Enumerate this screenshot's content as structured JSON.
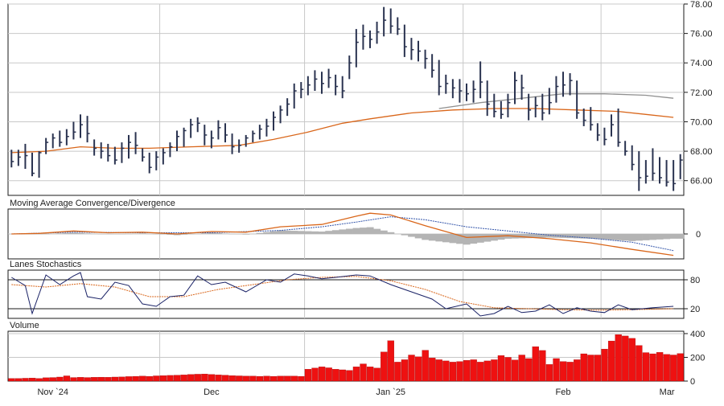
{
  "chart_data": {
    "type": "line",
    "price_axis": {
      "ylim": [
        65,
        78
      ],
      "ticks": [
        66,
        68,
        70,
        72,
        74,
        76,
        78
      ],
      "tick_labels": [
        "66.00",
        "68.00",
        "70.00",
        "72.00",
        "74.00",
        "76.00",
        "78.00"
      ]
    },
    "x_axis": {
      "month_labels": [
        "Nov `24",
        "Dec",
        "Jan `25",
        "Feb",
        "Mar"
      ],
      "month_start_index": [
        0,
        22,
        43,
        66,
        86
      ]
    },
    "price_bars": [
      {
        "h": 68.1,
        "l": 66.9,
        "c": 67.3
      },
      {
        "h": 68.1,
        "l": 67.0,
        "c": 67.6
      },
      {
        "h": 68.5,
        "l": 66.8,
        "c": 67.7
      },
      {
        "h": 67.9,
        "l": 66.3,
        "c": 66.5
      },
      {
        "h": 68.0,
        "l": 66.2,
        "c": 67.9
      },
      {
        "h": 68.9,
        "l": 67.8,
        "c": 68.6
      },
      {
        "h": 69.2,
        "l": 68.2,
        "c": 68.9
      },
      {
        "h": 69.4,
        "l": 68.3,
        "c": 68.6
      },
      {
        "h": 69.5,
        "l": 68.4,
        "c": 69.0
      },
      {
        "h": 70.0,
        "l": 68.8,
        "c": 69.3
      },
      {
        "h": 70.5,
        "l": 68.9,
        "c": 69.8
      },
      {
        "h": 70.4,
        "l": 68.6,
        "c": 69.2
      },
      {
        "h": 68.8,
        "l": 67.7,
        "c": 68.2
      },
      {
        "h": 68.6,
        "l": 67.5,
        "c": 68.0
      },
      {
        "h": 68.5,
        "l": 67.3,
        "c": 67.7
      },
      {
        "h": 68.3,
        "l": 67.1,
        "c": 67.4
      },
      {
        "h": 68.6,
        "l": 67.2,
        "c": 68.2
      },
      {
        "h": 69.1,
        "l": 67.5,
        "c": 68.6
      },
      {
        "h": 69.3,
        "l": 67.8,
        "c": 68.4
      },
      {
        "h": 68.2,
        "l": 67.3,
        "c": 67.6
      },
      {
        "h": 67.9,
        "l": 66.5,
        "c": 66.9
      },
      {
        "h": 68.0,
        "l": 66.7,
        "c": 67.6
      },
      {
        "h": 68.2,
        "l": 67.1,
        "c": 67.9
      },
      {
        "h": 68.6,
        "l": 67.6,
        "c": 68.3
      },
      {
        "h": 69.4,
        "l": 68.0,
        "c": 69.0
      },
      {
        "h": 69.6,
        "l": 68.3,
        "c": 69.4
      },
      {
        "h": 70.2,
        "l": 68.9,
        "c": 69.8
      },
      {
        "h": 70.3,
        "l": 69.3,
        "c": 69.9
      },
      {
        "h": 69.8,
        "l": 68.4,
        "c": 69.1
      },
      {
        "h": 69.4,
        "l": 68.2,
        "c": 68.9
      },
      {
        "h": 70.1,
        "l": 68.8,
        "c": 69.6
      },
      {
        "h": 69.9,
        "l": 68.6,
        "c": 69.1
      },
      {
        "h": 69.2,
        "l": 67.8,
        "c": 68.3
      },
      {
        "h": 68.8,
        "l": 67.9,
        "c": 68.4
      },
      {
        "h": 69.1,
        "l": 68.3,
        "c": 68.9
      },
      {
        "h": 69.4,
        "l": 68.6,
        "c": 69.2
      },
      {
        "h": 69.8,
        "l": 68.8,
        "c": 69.5
      },
      {
        "h": 70.2,
        "l": 69.0,
        "c": 69.7
      },
      {
        "h": 70.7,
        "l": 69.4,
        "c": 70.3
      },
      {
        "h": 71.1,
        "l": 69.9,
        "c": 70.8
      },
      {
        "h": 71.6,
        "l": 70.4,
        "c": 71.2
      },
      {
        "h": 72.6,
        "l": 70.9,
        "c": 72.1
      },
      {
        "h": 72.7,
        "l": 71.6,
        "c": 72.2
      },
      {
        "h": 73.1,
        "l": 71.8,
        "c": 72.5
      },
      {
        "h": 73.5,
        "l": 72.1,
        "c": 72.9
      },
      {
        "h": 73.4,
        "l": 71.9,
        "c": 72.6
      },
      {
        "h": 73.6,
        "l": 72.3,
        "c": 73.0
      },
      {
        "h": 73.2,
        "l": 71.8,
        "c": 72.4
      },
      {
        "h": 73.1,
        "l": 71.6,
        "c": 72.1
      },
      {
        "h": 74.5,
        "l": 72.9,
        "c": 74.0
      },
      {
        "h": 76.3,
        "l": 73.7,
        "c": 75.4
      },
      {
        "h": 76.6,
        "l": 74.9,
        "c": 75.8
      },
      {
        "h": 76.2,
        "l": 75.0,
        "c": 75.6
      },
      {
        "h": 76.8,
        "l": 75.3,
        "c": 76.1
      },
      {
        "h": 77.8,
        "l": 75.8,
        "c": 76.9
      },
      {
        "h": 77.7,
        "l": 76.0,
        "c": 76.5
      },
      {
        "h": 77.1,
        "l": 75.9,
        "c": 76.3
      },
      {
        "h": 76.6,
        "l": 74.4,
        "c": 75.1
      },
      {
        "h": 75.7,
        "l": 74.2,
        "c": 74.9
      },
      {
        "h": 75.5,
        "l": 74.1,
        "c": 74.8
      },
      {
        "h": 74.9,
        "l": 73.6,
        "c": 74.3
      },
      {
        "h": 74.6,
        "l": 73.0,
        "c": 73.5
      },
      {
        "h": 74.2,
        "l": 71.8,
        "c": 72.4
      },
      {
        "h": 73.2,
        "l": 71.9,
        "c": 72.6
      },
      {
        "h": 72.9,
        "l": 71.6,
        "c": 72.3
      },
      {
        "h": 72.9,
        "l": 71.3,
        "c": 72.1
      },
      {
        "h": 72.6,
        "l": 71.4,
        "c": 71.9
      },
      {
        "h": 72.8,
        "l": 71.3,
        "c": 72.2
      },
      {
        "h": 74.1,
        "l": 71.6,
        "c": 72.7
      },
      {
        "h": 72.8,
        "l": 70.4,
        "c": 71.2
      },
      {
        "h": 71.9,
        "l": 70.3,
        "c": 70.7
      },
      {
        "h": 71.4,
        "l": 70.2,
        "c": 70.5
      },
      {
        "h": 71.9,
        "l": 70.3,
        "c": 71.3
      },
      {
        "h": 73.4,
        "l": 71.2,
        "c": 72.8
      },
      {
        "h": 73.2,
        "l": 71.5,
        "c": 72.3
      },
      {
        "h": 71.9,
        "l": 70.1,
        "c": 70.8
      },
      {
        "h": 71.7,
        "l": 70.3,
        "c": 71.1
      },
      {
        "h": 71.9,
        "l": 70.1,
        "c": 70.6
      },
      {
        "h": 72.3,
        "l": 70.5,
        "c": 71.3
      },
      {
        "h": 73.1,
        "l": 71.3,
        "c": 72.4
      },
      {
        "h": 73.4,
        "l": 71.7,
        "c": 72.5
      },
      {
        "h": 73.3,
        "l": 71.8,
        "c": 72.8
      },
      {
        "h": 72.8,
        "l": 70.2,
        "c": 70.6
      },
      {
        "h": 70.9,
        "l": 69.7,
        "c": 70.1
      },
      {
        "h": 71.0,
        "l": 69.4,
        "c": 69.8
      },
      {
        "h": 69.9,
        "l": 68.7,
        "c": 69.1
      },
      {
        "h": 69.6,
        "l": 68.4,
        "c": 68.8
      },
      {
        "h": 70.5,
        "l": 69.0,
        "c": 69.8
      },
      {
        "h": 70.9,
        "l": 68.3,
        "c": 68.6
      },
      {
        "h": 68.7,
        "l": 67.7,
        "c": 68.0
      },
      {
        "h": 68.4,
        "l": 66.7,
        "c": 67.1
      },
      {
        "h": 68.0,
        "l": 65.3,
        "c": 66.2
      },
      {
        "h": 67.4,
        "l": 65.8,
        "c": 66.3
      },
      {
        "h": 68.2,
        "l": 66.0,
        "c": 66.5
      },
      {
        "h": 67.6,
        "l": 65.8,
        "c": 66.2
      },
      {
        "h": 67.4,
        "l": 65.6,
        "c": 65.9
      },
      {
        "h": 67.4,
        "l": 65.3,
        "c": 65.8
      },
      {
        "h": 67.8,
        "l": 66.1,
        "c": 67.4
      }
    ],
    "moving_averages": [
      {
        "color": "#d9661a",
        "points": [
          [
            0,
            67.9
          ],
          [
            5,
            68.0
          ],
          [
            10,
            68.3
          ],
          [
            15,
            68.2
          ],
          [
            20,
            68.2
          ],
          [
            26,
            68.3
          ],
          [
            33,
            68.4
          ],
          [
            38,
            68.8
          ],
          [
            43,
            69.3
          ],
          [
            48,
            69.9
          ],
          [
            52,
            70.2
          ],
          [
            58,
            70.6
          ],
          [
            64,
            70.8
          ],
          [
            70,
            70.9
          ],
          [
            76,
            70.9
          ],
          [
            82,
            70.8
          ],
          [
            88,
            70.7
          ],
          [
            92,
            70.5
          ],
          [
            96,
            70.3
          ]
        ]
      },
      {
        "color": "#909090",
        "points": [
          [
            62,
            70.9
          ],
          [
            68,
            71.3
          ],
          [
            74,
            71.6
          ],
          [
            80,
            71.9
          ],
          [
            86,
            71.9
          ],
          [
            92,
            71.8
          ],
          [
            96,
            71.6
          ]
        ]
      }
    ],
    "macd": {
      "title": "Moving Average Convergence/Divergence",
      "tick_labels": [
        "0"
      ],
      "macd_line": {
        "color": "#d9661a",
        "points": [
          [
            0,
            0.0
          ],
          [
            4,
            0.1
          ],
          [
            9,
            0.5
          ],
          [
            14,
            0.2
          ],
          [
            19,
            0.3
          ],
          [
            24,
            0.0
          ],
          [
            29,
            0.4
          ],
          [
            34,
            0.3
          ],
          [
            39,
            1.2
          ],
          [
            45,
            1.6
          ],
          [
            50,
            3.0
          ],
          [
            52,
            3.5
          ],
          [
            55,
            3.2
          ],
          [
            60,
            1.4
          ],
          [
            66,
            -0.6
          ],
          [
            72,
            -0.3
          ],
          [
            78,
            -0.8
          ],
          [
            84,
            -1.5
          ],
          [
            90,
            -2.6
          ],
          [
            96,
            -3.6
          ]
        ]
      },
      "signal_line": {
        "color": "#3355aa",
        "points": [
          [
            0,
            0.0
          ],
          [
            9,
            0.3
          ],
          [
            19,
            0.2
          ],
          [
            29,
            0.2
          ],
          [
            39,
            0.6
          ],
          [
            45,
            1.2
          ],
          [
            50,
            2.0
          ],
          [
            55,
            2.9
          ],
          [
            60,
            2.4
          ],
          [
            66,
            1.2
          ],
          [
            72,
            0.5
          ],
          [
            78,
            -0.2
          ],
          [
            84,
            -0.7
          ],
          [
            90,
            -1.4
          ],
          [
            96,
            -2.8
          ]
        ]
      },
      "histogram_color": "#b4b4b4"
    },
    "stochastics": {
      "title": "Lanes Stochastics",
      "tick_labels": [
        "80",
        "20"
      ],
      "k_line": {
        "color": "#1a2266",
        "points": [
          [
            0,
            85
          ],
          [
            2,
            68
          ],
          [
            3,
            10
          ],
          [
            5,
            90
          ],
          [
            7,
            70
          ],
          [
            9,
            88
          ],
          [
            10,
            95
          ],
          [
            11,
            45
          ],
          [
            13,
            40
          ],
          [
            15,
            75
          ],
          [
            17,
            68
          ],
          [
            19,
            30
          ],
          [
            21,
            25
          ],
          [
            23,
            45
          ],
          [
            25,
            48
          ],
          [
            27,
            88
          ],
          [
            29,
            70
          ],
          [
            31,
            75
          ],
          [
            34,
            55
          ],
          [
            37,
            80
          ],
          [
            39,
            75
          ],
          [
            41,
            92
          ],
          [
            43,
            88
          ],
          [
            45,
            82
          ],
          [
            47,
            85
          ],
          [
            50,
            90
          ],
          [
            52,
            88
          ],
          [
            55,
            70
          ],
          [
            58,
            55
          ],
          [
            61,
            40
          ],
          [
            63,
            20
          ],
          [
            66,
            30
          ],
          [
            68,
            5
          ],
          [
            70,
            10
          ],
          [
            72,
            25
          ],
          [
            74,
            12
          ],
          [
            76,
            15
          ],
          [
            78,
            28
          ],
          [
            80,
            10
          ],
          [
            82,
            22
          ],
          [
            84,
            15
          ],
          [
            86,
            12
          ],
          [
            88,
            28
          ],
          [
            90,
            18
          ],
          [
            93,
            22
          ],
          [
            96,
            25
          ]
        ]
      },
      "d_line": {
        "color": "#d9661a",
        "points": [
          [
            0,
            70
          ],
          [
            5,
            65
          ],
          [
            10,
            72
          ],
          [
            15,
            65
          ],
          [
            20,
            45
          ],
          [
            25,
            45
          ],
          [
            30,
            60
          ],
          [
            35,
            70
          ],
          [
            40,
            80
          ],
          [
            45,
            85
          ],
          [
            50,
            87
          ],
          [
            55,
            78
          ],
          [
            60,
            60
          ],
          [
            65,
            35
          ],
          [
            70,
            22
          ],
          [
            75,
            20
          ],
          [
            80,
            18
          ],
          [
            85,
            17
          ],
          [
            90,
            18
          ],
          [
            96,
            20
          ]
        ]
      }
    },
    "volume": {
      "title": "Volume",
      "tick_labels": [
        "0",
        "200",
        "400"
      ],
      "ylim": [
        0,
        420
      ],
      "bar_color": "#ee1111",
      "values": [
        22,
        22,
        24,
        26,
        22,
        28,
        30,
        34,
        44,
        30,
        32,
        30,
        32,
        33,
        32,
        34,
        35,
        38,
        40,
        42,
        40,
        44,
        46,
        48,
        50,
        52,
        56,
        58,
        60,
        56,
        52,
        50,
        46,
        44,
        42,
        42,
        40,
        42,
        40,
        42,
        42,
        42,
        40,
        100,
        110,
        120,
        112,
        100,
        95,
        90,
        120,
        145,
        120,
        110,
        245,
        340,
        160,
        180,
        220,
        205,
        260,
        195,
        180,
        170,
        160,
        165,
        175,
        180,
        160,
        170,
        180,
        215,
        200,
        178,
        220,
        190,
        290,
        258,
        140,
        190,
        165,
        160,
        180,
        230,
        220,
        220,
        270,
        338,
        392,
        380,
        360,
        300,
        240,
        230,
        242,
        225,
        220,
        232
      ]
    }
  }
}
